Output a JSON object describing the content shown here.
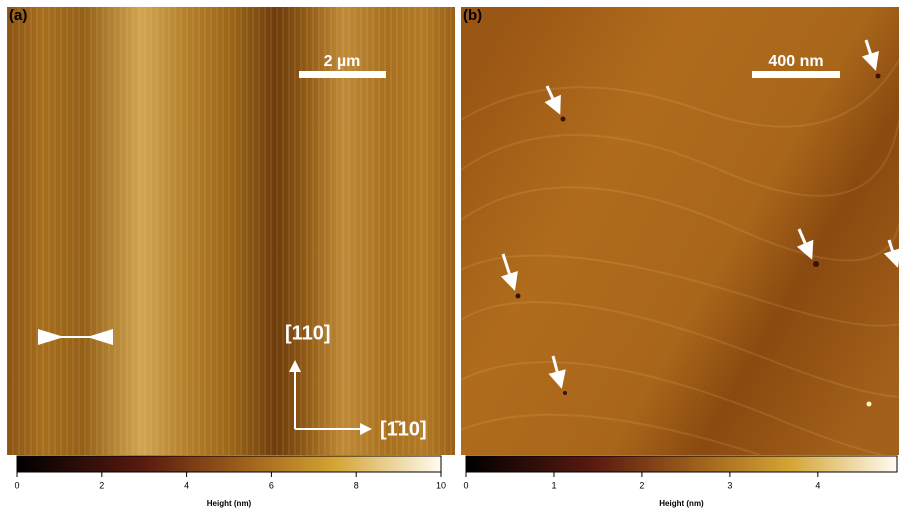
{
  "panels": [
    {
      "label": "(a)",
      "scale_bar": "2 µm",
      "directions": [
        "[110]",
        "[1̄10]"
      ],
      "colorbar": {
        "lim": [
          0,
          10
        ],
        "ticks": [
          0,
          2,
          4,
          6,
          8,
          10
        ],
        "label": "Height (nm)"
      }
    },
    {
      "label": "(b)",
      "scale_bar": "400 nm",
      "colorbar": {
        "lim": [
          0,
          4.9
        ],
        "ticks": [
          0,
          1,
          2,
          3,
          4
        ],
        "label": "Height (nm)"
      }
    }
  ]
}
